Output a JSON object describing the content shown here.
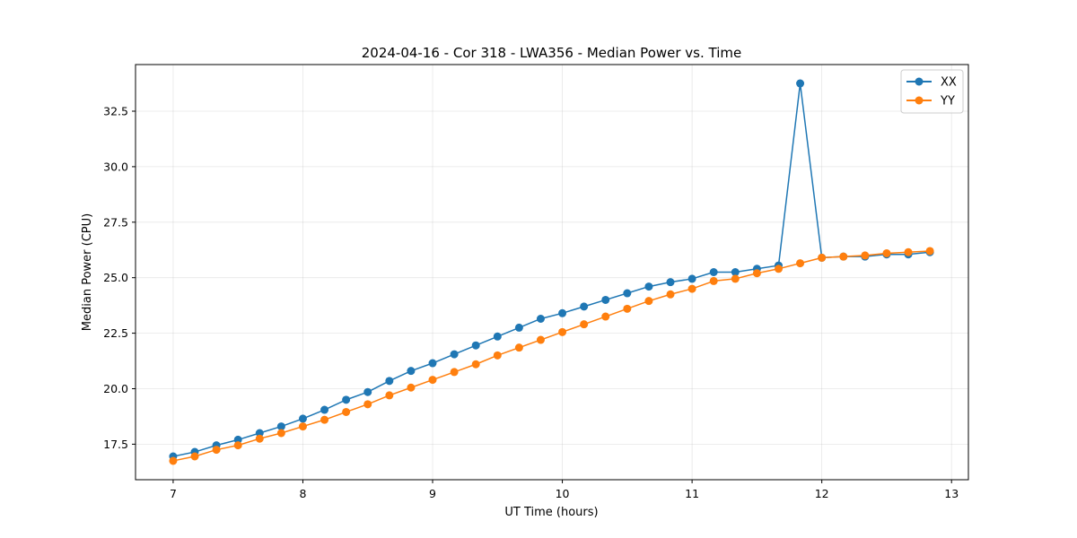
{
  "chart_data": {
    "type": "line",
    "title": "2024-04-16 - Cor 318 - LWA356 - Median Power vs. Time",
    "xlabel": "UT Time (hours)",
    "ylabel": "Median Power (CPU)",
    "xlim": [
      6.71,
      13.13
    ],
    "ylim": [
      15.9,
      34.6
    ],
    "xticks": [
      7,
      8,
      9,
      10,
      11,
      12,
      13
    ],
    "xtick_labels": [
      "7",
      "8",
      "9",
      "10",
      "11",
      "12",
      "13"
    ],
    "yticks": [
      17.5,
      20.0,
      22.5,
      25.0,
      27.5,
      30.0,
      32.5
    ],
    "ytick_labels": [
      "17.5",
      "20.0",
      "22.5",
      "25.0",
      "27.5",
      "30.0",
      "32.5"
    ],
    "grid": true,
    "legend_position": "top-right",
    "x": [
      7.0,
      7.1667,
      7.3333,
      7.5,
      7.6667,
      7.8333,
      8.0,
      8.1667,
      8.3333,
      8.5,
      8.6667,
      8.8333,
      9.0,
      9.1667,
      9.3333,
      9.5,
      9.6667,
      9.8333,
      10.0,
      10.1667,
      10.3333,
      10.5,
      10.6667,
      10.8333,
      11.0,
      11.1667,
      11.3333,
      11.5,
      11.6667,
      11.8333,
      12.0,
      12.1667,
      12.3333,
      12.5,
      12.6667,
      12.8333
    ],
    "series": [
      {
        "name": "XX",
        "color": "#1f77b4",
        "values": [
          16.95,
          17.15,
          17.45,
          17.7,
          18.0,
          18.3,
          18.65,
          19.05,
          19.5,
          19.85,
          20.35,
          20.8,
          21.15,
          21.55,
          21.95,
          22.35,
          22.75,
          23.15,
          23.4,
          23.7,
          24.0,
          24.3,
          24.6,
          24.8,
          24.95,
          25.25,
          25.25,
          25.4,
          25.55,
          33.75,
          25.9,
          25.95,
          25.95,
          26.05,
          26.05,
          26.15
        ]
      },
      {
        "name": "YY",
        "color": "#ff7f0e",
        "values": [
          16.75,
          16.95,
          17.25,
          17.45,
          17.75,
          18.0,
          18.3,
          18.6,
          18.95,
          19.3,
          19.7,
          20.05,
          20.4,
          20.75,
          21.1,
          21.5,
          21.85,
          22.2,
          22.55,
          22.9,
          23.25,
          23.6,
          23.95,
          24.25,
          24.5,
          24.85,
          24.95,
          25.2,
          25.4,
          25.65,
          25.9,
          25.95,
          26.0,
          26.1,
          26.15,
          26.2
        ]
      }
    ]
  }
}
